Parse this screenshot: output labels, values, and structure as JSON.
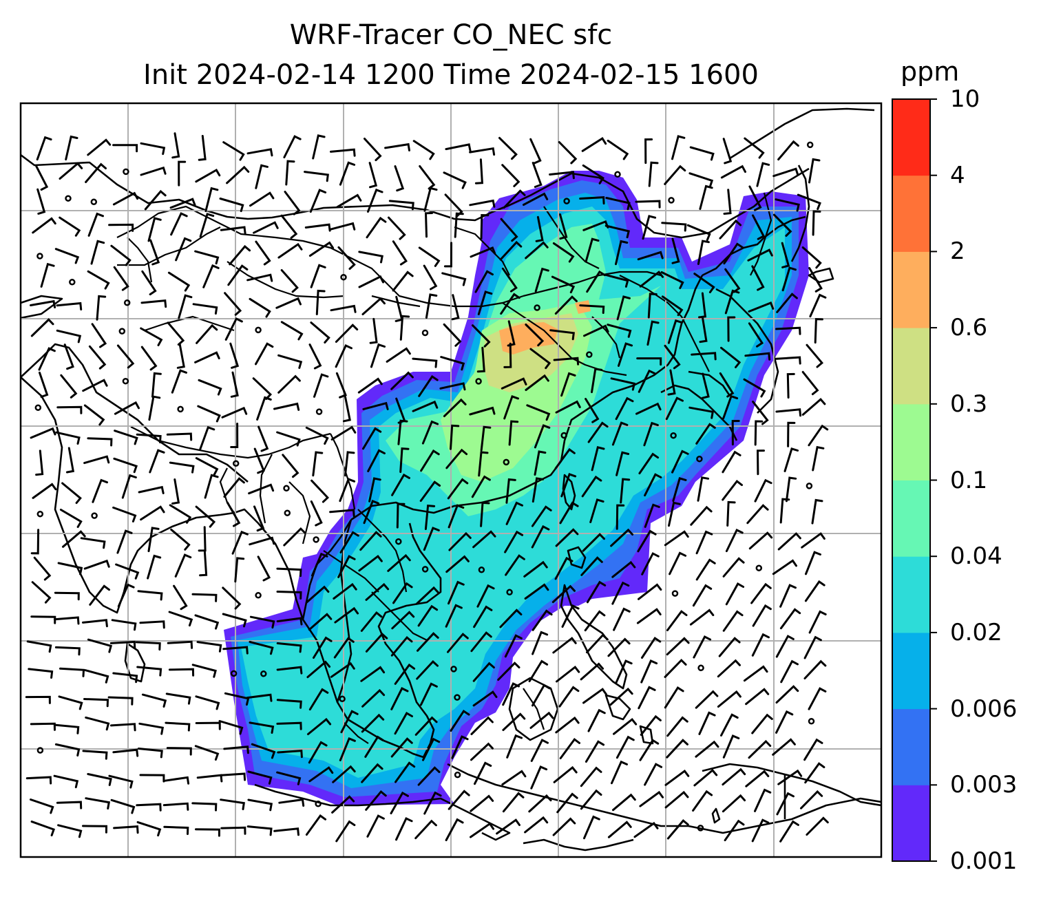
{
  "title": {
    "line1": "WRF-Tracer CO_NEC sfc",
    "line2": "Init 2024-02-14 1200 Time 2024-02-15 1600"
  },
  "colorbar": {
    "unit": "ppm",
    "levels": [
      "0.001",
      "0.003",
      "0.006",
      "0.02",
      "0.04",
      "0.1",
      "0.3",
      "0.6",
      "2",
      "4",
      "10"
    ],
    "colors": [
      "#6229fa",
      "#3372f3",
      "#06b0ea",
      "#2ddcd8",
      "#66f7b4",
      "#9dfa91",
      "#cee083",
      "#feae5d",
      "#ff7237",
      "#ff2b18"
    ]
  },
  "map": {
    "region": "East and Southeast Asia",
    "gridlines": true,
    "overlays": [
      "coastlines",
      "country-borders",
      "wind-barbs"
    ]
  }
}
